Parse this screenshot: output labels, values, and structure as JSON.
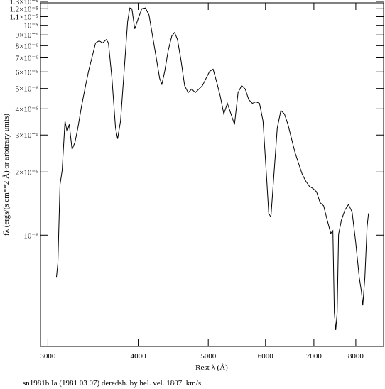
{
  "chart_data": {
    "type": "line",
    "xlabel": "Rest λ (Å)",
    "ylabel": "fλ (ergs/(s cm**2 Å) or arbitrary units)",
    "caption": "sn1981b Ia (1981 03 07) deredsh. by hel. vel.  1807. km/s",
    "xscale": "log",
    "yscale": "log",
    "color": "#000000",
    "xlim": [
      2930,
      8740
    ],
    "ylim": [
      2.95e-07,
      1.28e-05
    ],
    "xticks": [
      3000,
      4000,
      5000,
      6000,
      7000,
      8000
    ],
    "yticks": [
      {
        "value": 1e-06,
        "label": "10⁻⁶"
      },
      {
        "value": 2e-06,
        "label": "2×10⁻⁶"
      },
      {
        "value": 3e-06,
        "label": "3×10⁻⁶"
      },
      {
        "value": 4e-06,
        "label": "4×10⁻⁶"
      },
      {
        "value": 5e-06,
        "label": "5×10⁻⁶"
      },
      {
        "value": 6e-06,
        "label": "6×10⁻⁶"
      },
      {
        "value": 7e-06,
        "label": "7×10⁻⁶"
      },
      {
        "value": 8e-06,
        "label": "8×10⁻⁶"
      },
      {
        "value": 9e-06,
        "label": "9×10⁻⁶"
      },
      {
        "value": 1e-05,
        "label": "10⁻⁵"
      },
      {
        "value": 1.1e-05,
        "label": "1.1×10⁻⁵"
      },
      {
        "value": 1.2e-05,
        "label": "1.2×10⁻⁵"
      },
      {
        "value": 1.3e-05,
        "label": "1.3×10⁻⁵"
      }
    ],
    "x": [
      3083,
      3097,
      3118,
      3139,
      3168,
      3189,
      3211,
      3240,
      3270,
      3300,
      3338,
      3375,
      3414,
      3453,
      3492,
      3532,
      3572,
      3613,
      3638,
      3679,
      3721,
      3746,
      3781,
      3824,
      3867,
      3894,
      3920,
      3956,
      4001,
      4046,
      4093,
      4140,
      4187,
      4235,
      4283,
      4313,
      4352,
      4402,
      4452,
      4492,
      4533,
      4585,
      4637,
      4690,
      4744,
      4798,
      4853,
      4908,
      4964,
      5021,
      5078,
      5136,
      5195,
      5254,
      5314,
      5375,
      5436,
      5498,
      5561,
      5625,
      5689,
      5754,
      5819,
      5886,
      5953,
      6021,
      6062,
      6104,
      6159,
      6229,
      6301,
      6373,
      6445,
      6519,
      6593,
      6669,
      6745,
      6822,
      6900,
      6979,
      7059,
      7139,
      7221,
      7303,
      7387,
      7437,
      7471,
      7505,
      7539,
      7573,
      7642,
      7729,
      7817,
      7906,
      7996,
      8087,
      8143,
      8180,
      8235,
      8292,
      8330
    ],
    "values": [
      6.32e-07,
      7.38e-07,
      1.74e-06,
      2.03e-06,
      3.5e-06,
      3.11e-06,
      3.37e-06,
      2.56e-06,
      2.77e-06,
      3.24e-06,
      4.09e-06,
      4.97e-06,
      6.03e-06,
      7.05e-06,
      8.24e-06,
      8.43e-06,
      8.24e-06,
      8.55e-06,
      8.24e-06,
      5.58e-06,
      3.24e-06,
      2.88e-06,
      3.5e-06,
      6.03e-06,
      1.04e-05,
      1.21e-05,
      1.2e-05,
      9.62e-06,
      1.08e-05,
      1.2e-05,
      1.21e-05,
      1.12e-05,
      8.9e-06,
      7.05e-06,
      5.58e-06,
      5.24e-06,
      6.03e-06,
      7.62e-06,
      8.9e-06,
      9.25e-06,
      8.55e-06,
      6.78e-06,
      5.16e-06,
      4.78e-06,
      4.97e-06,
      4.78e-06,
      4.97e-06,
      5.16e-06,
      5.58e-06,
      6.03e-06,
      6.18e-06,
      5.37e-06,
      4.59e-06,
      3.78e-06,
      4.25e-06,
      3.78e-06,
      3.37e-06,
      4.78e-06,
      5.16e-06,
      4.97e-06,
      4.42e-06,
      4.25e-06,
      4.32e-06,
      4.25e-06,
      3.5e-06,
      1.88e-06,
      1.27e-06,
      1.22e-06,
      1.88e-06,
      3.24e-06,
      3.93e-06,
      3.78e-06,
      3.37e-06,
      2.88e-06,
      2.47e-06,
      2.19e-06,
      1.95e-06,
      1.81e-06,
      1.71e-06,
      1.67e-06,
      1.61e-06,
      1.43e-06,
      1.38e-06,
      1.18e-06,
      1.02e-06,
      1.05e-06,
      4.28e-07,
      3.53e-07,
      4.28e-07,
      1.01e-06,
      1.18e-06,
      1.32e-06,
      1.4e-06,
      1.29e-06,
      9.3e-07,
      6.32e-07,
      5.41e-07,
      4.63e-07,
      6.32e-07,
      1.09e-06,
      1.27e-06
    ]
  }
}
